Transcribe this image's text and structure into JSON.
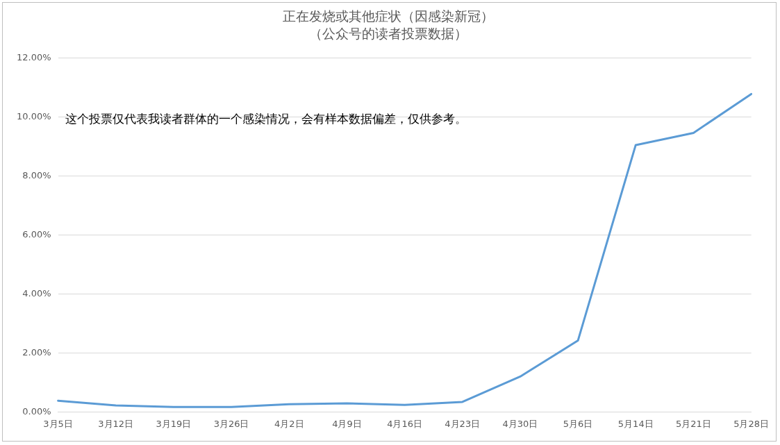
{
  "chart_data": {
    "type": "line",
    "title": "正在发烧或其他症状（因感染新冠）",
    "subtitle": "（公众号的读者投票数据）",
    "categories": [
      "3月5日",
      "3月12日",
      "3月19日",
      "3月26日",
      "4月2日",
      "4月9日",
      "4月16日",
      "4月23日",
      "4月30日",
      "5月6日",
      "5月14日",
      "5月21日",
      "5月28日"
    ],
    "series": [
      {
        "color": "#5b9bd5",
        "values": [
          0.38,
          0.22,
          0.17,
          0.17,
          0.26,
          0.29,
          0.24,
          0.34,
          1.2,
          2.42,
          9.05,
          9.46,
          10.78
        ]
      }
    ],
    "ylim": [
      0,
      12
    ],
    "yticks": [
      {
        "value": 0,
        "label": "0.00%"
      },
      {
        "value": 2,
        "label": "2.00%"
      },
      {
        "value": 4,
        "label": "4.00%"
      },
      {
        "value": 6,
        "label": "6.00%"
      },
      {
        "value": 8,
        "label": "8.00%"
      },
      {
        "value": 10,
        "label": "10.00%"
      },
      {
        "value": 12,
        "label": "12.00%"
      }
    ],
    "grid": "y",
    "legend": false,
    "marker": "none",
    "line_style": "solid",
    "annotations": [
      "这个投票仅代表我读者群体的一个感染情况，会有样本数据偏差，仅供参考。"
    ]
  }
}
